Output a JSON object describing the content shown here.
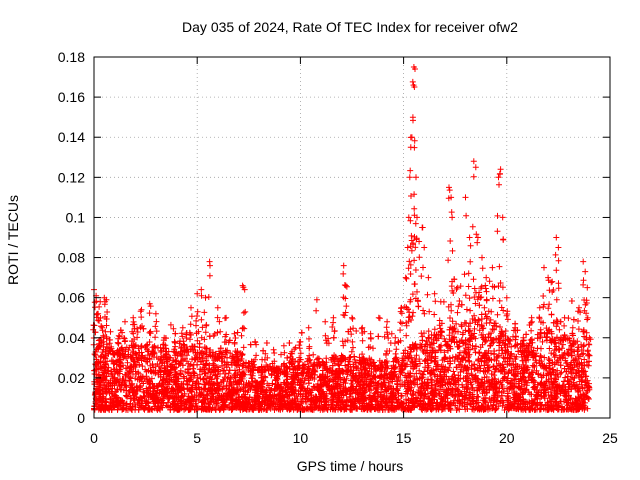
{
  "chart_data": {
    "type": "scatter",
    "title": "Day 035 of 2024, Rate Of TEC Index for receiver ofw2",
    "xlabel": "GPS time / hours",
    "ylabel": "ROTI / TECUs",
    "xlim": [
      0,
      25
    ],
    "ylim": [
      0,
      0.18
    ],
    "grid": true,
    "marker": "+",
    "color": "#ff0000",
    "x_ticks": [
      0,
      5,
      10,
      15,
      20,
      25
    ],
    "x_tick_labels": [
      "0",
      "5",
      "10",
      "15",
      "20",
      "25"
    ],
    "y_ticks": [
      0,
      0.02,
      0.04,
      0.06,
      0.08,
      0.1,
      0.12,
      0.14,
      0.16,
      0.18
    ],
    "y_tick_labels": [
      "0",
      "0.02",
      "0.04",
      "0.06",
      "0.08",
      "0.1",
      "0.12",
      "0.14",
      "0.16",
      "0.18"
    ],
    "series": [
      {
        "name": "ROTI",
        "points": [
          [
            0.0,
            0.064
          ],
          [
            0.1,
            0.061
          ],
          [
            0.2,
            0.052
          ],
          [
            0.3,
            0.058
          ],
          [
            0.5,
            0.06
          ],
          [
            0.6,
            0.059
          ],
          [
            0.4,
            0.045
          ],
          [
            0.8,
            0.043
          ],
          [
            1.2,
            0.041
          ],
          [
            1.5,
            0.048
          ],
          [
            1.9,
            0.05
          ],
          [
            2.3,
            0.054
          ],
          [
            2.7,
            0.057
          ],
          [
            3.0,
            0.052
          ],
          [
            3.4,
            0.04
          ],
          [
            3.9,
            0.038
          ],
          [
            4.3,
            0.045
          ],
          [
            4.7,
            0.055
          ],
          [
            5.0,
            0.062
          ],
          [
            5.2,
            0.064
          ],
          [
            5.4,
            0.06
          ],
          [
            5.6,
            0.078
          ],
          [
            6.0,
            0.055
          ],
          [
            6.4,
            0.05
          ],
          [
            6.8,
            0.042
          ],
          [
            7.2,
            0.066
          ],
          [
            7.3,
            0.064
          ],
          [
            7.8,
            0.038
          ],
          [
            8.3,
            0.032
          ],
          [
            8.7,
            0.034
          ],
          [
            9.2,
            0.036
          ],
          [
            9.6,
            0.033
          ],
          [
            10.0,
            0.038
          ],
          [
            10.4,
            0.045
          ],
          [
            10.8,
            0.059
          ],
          [
            11.2,
            0.048
          ],
          [
            11.6,
            0.05
          ],
          [
            12.1,
            0.076
          ],
          [
            12.2,
            0.066
          ],
          [
            12.5,
            0.05
          ],
          [
            13.0,
            0.045
          ],
          [
            13.4,
            0.042
          ],
          [
            13.8,
            0.05
          ],
          [
            14.2,
            0.048
          ],
          [
            14.6,
            0.04
          ],
          [
            14.9,
            0.055
          ],
          [
            15.1,
            0.07
          ],
          [
            15.2,
            0.085
          ],
          [
            15.25,
            0.1
          ],
          [
            15.3,
            0.12
          ],
          [
            15.35,
            0.135
          ],
          [
            15.4,
            0.14
          ],
          [
            15.45,
            0.15
          ],
          [
            15.48,
            0.166
          ],
          [
            15.5,
            0.175
          ],
          [
            15.55,
            0.174
          ],
          [
            15.6,
            0.12
          ],
          [
            15.65,
            0.1
          ],
          [
            15.75,
            0.088
          ],
          [
            15.9,
            0.095
          ],
          [
            16.0,
            0.085
          ],
          [
            16.2,
            0.07
          ],
          [
            16.5,
            0.062
          ],
          [
            16.8,
            0.058
          ],
          [
            17.2,
            0.115
          ],
          [
            17.3,
            0.11
          ],
          [
            17.35,
            0.1
          ],
          [
            17.6,
            0.065
          ],
          [
            18.0,
            0.11
          ],
          [
            18.2,
            0.09
          ],
          [
            18.4,
            0.128
          ],
          [
            18.5,
            0.125
          ],
          [
            18.6,
            0.09
          ],
          [
            18.8,
            0.08
          ],
          [
            19.0,
            0.07
          ],
          [
            19.3,
            0.075
          ],
          [
            19.6,
            0.12
          ],
          [
            19.7,
            0.124
          ],
          [
            19.8,
            0.1
          ],
          [
            20.0,
            0.06
          ],
          [
            20.4,
            0.045
          ],
          [
            20.8,
            0.04
          ],
          [
            21.2,
            0.05
          ],
          [
            21.6,
            0.055
          ],
          [
            21.8,
            0.075
          ],
          [
            22.0,
            0.07
          ],
          [
            22.2,
            0.068
          ],
          [
            22.4,
            0.09
          ],
          [
            22.5,
            0.085
          ],
          [
            22.8,
            0.05
          ],
          [
            23.2,
            0.045
          ],
          [
            23.5,
            0.055
          ],
          [
            23.7,
            0.078
          ],
          [
            23.8,
            0.073
          ],
          [
            23.9,
            0.065
          ],
          [
            24.0,
            0.04
          ]
        ]
      }
    ],
    "seed": 35,
    "baseline": [
      [
        0,
        0.028
      ],
      [
        0.3,
        0.036
      ],
      [
        1,
        0.03
      ],
      [
        2,
        0.034
      ],
      [
        3,
        0.032
      ],
      [
        4,
        0.03
      ],
      [
        5,
        0.034
      ],
      [
        6,
        0.03
      ],
      [
        7,
        0.03
      ],
      [
        8,
        0.022
      ],
      [
        9,
        0.022
      ],
      [
        10,
        0.026
      ],
      [
        11,
        0.024
      ],
      [
        12,
        0.028
      ],
      [
        13,
        0.026
      ],
      [
        14,
        0.024
      ],
      [
        15,
        0.03
      ],
      [
        16,
        0.036
      ],
      [
        17,
        0.04
      ],
      [
        18,
        0.046
      ],
      [
        19,
        0.05
      ],
      [
        20,
        0.036
      ],
      [
        21,
        0.034
      ],
      [
        22,
        0.04
      ],
      [
        23,
        0.036
      ],
      [
        24,
        0.032
      ]
    ],
    "background_density_per_hour": 260
  }
}
